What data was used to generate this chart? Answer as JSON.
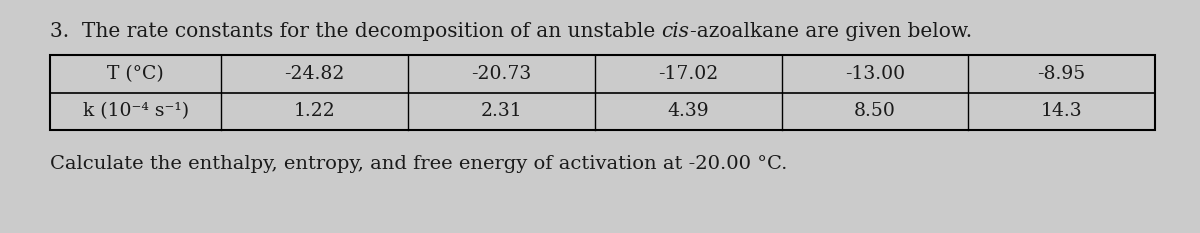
{
  "title_pre": "3.  The rate constants for the decomposition of an unstable ",
  "title_italic": "cis",
  "title_post": "-azoalkane are given below.",
  "row1_header": "T (°C)",
  "row2_header": "k (10⁻⁴ s⁻¹)",
  "col_values_T": [
    "-24.82",
    "-20.73",
    "-17.02",
    "-13.00",
    "-8.95"
  ],
  "col_values_k": [
    "1.22",
    "2.31",
    "4.39",
    "8.50",
    "14.3"
  ],
  "footer_text": "Calculate the enthalpy, entropy, and free energy of activation at -20.00 °C.",
  "bg_color": "#cbcbcb",
  "text_color": "#1a1a1a",
  "title_fontsize": 14.5,
  "table_fontsize": 13.5,
  "footer_fontsize": 14
}
